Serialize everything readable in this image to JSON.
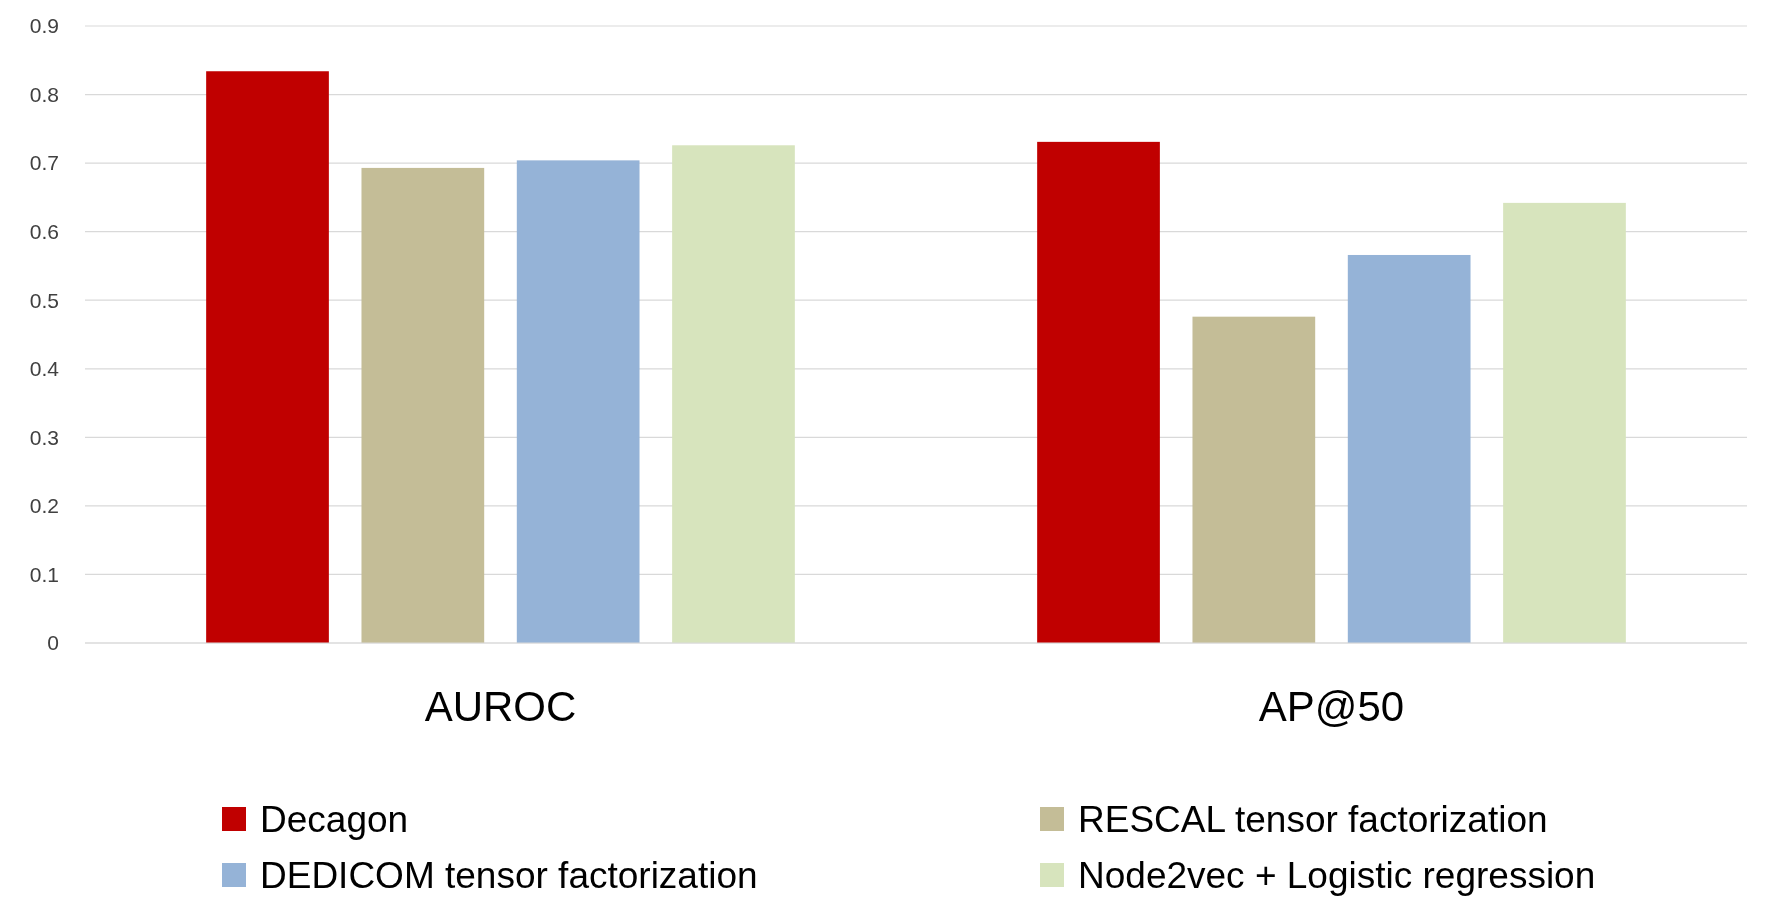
{
  "chart_data": {
    "type": "bar",
    "categories": [
      "AUROC",
      "AP@50"
    ],
    "series": [
      {
        "name": "Decagon",
        "color": "#c00000",
        "values": [
          0.834,
          0.731
        ]
      },
      {
        "name": "RESCAL tensor factorization",
        "color": "#c4bd97",
        "values": [
          0.693,
          0.476
        ]
      },
      {
        "name": "DEDICOM tensor factorization",
        "color": "#95b3d7",
        "values": [
          0.704,
          0.566
        ]
      },
      {
        "name": "Node2vec + Logistic regression",
        "color": "#d7e4bd",
        "values": [
          0.726,
          0.642
        ]
      }
    ],
    "ylim": [
      0,
      0.9
    ],
    "yticks": [
      {
        "value": 0,
        "label": "0"
      },
      0.1,
      0.2,
      0.3,
      0.4,
      0.5,
      0.6,
      0.7,
      0.8,
      0.9
    ],
    "grid": "y",
    "legend": "bottom"
  }
}
